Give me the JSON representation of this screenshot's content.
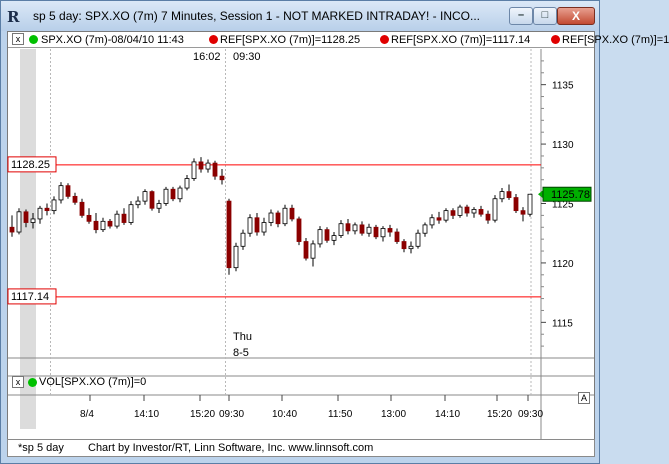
{
  "window": {
    "title": "sp 5 day: SPX.XO (7m) 7 Minutes, Session 1 - NOT MARKED INTRADAY! - INCO...",
    "min_glyph": "–",
    "max_glyph": "□",
    "close_glyph": "X",
    "app_icon_glyph": "R"
  },
  "header": {
    "close_glyph": "x",
    "symbol_label": "SPX.XO (7m)-08/04/10 11:43",
    "ref1_label": "REF[SPX.XO (7m)]=1128.25",
    "ref2_label": "REF[SPX.XO (7m)]=1117.14",
    "ref3_label": "REF[SPX.XO (7m)]=1",
    "symbol_dot_color": "#00c000",
    "ref_dot_color": "#e00000"
  },
  "price_pane": {
    "session_marks": [
      "16:02",
      "09:30"
    ],
    "ref_lines": [
      {
        "label": "1128.25",
        "value": 1128.25,
        "color": "#ff0000"
      },
      {
        "label": "1117.14",
        "value": 1117.14,
        "color": "#ff0000"
      }
    ],
    "last_price_label": "1125.78",
    "last_price_value": 1125.78,
    "day_label": [
      "Thu",
      "8-5"
    ],
    "y_ticks": [
      "1135",
      "1130",
      "1125",
      "1120",
      "1115"
    ],
    "top_ctl": "x"
  },
  "volume_pane": {
    "close_glyph": "x",
    "label": "VOL[SPX.XO (7m)]=0",
    "dot_color": "#00c000",
    "axis_glyph": "A"
  },
  "time_axis": {
    "ticks": [
      "8/4",
      "14:10",
      "15:20",
      "09:30",
      "10:40",
      "11:50",
      "13:00",
      "14:10",
      "15:20",
      "09:30"
    ]
  },
  "footer": {
    "tab_label": "*sp 5 day",
    "credit": "Chart by Investor/RT, Linn Software, Inc. www.linnsoft.com"
  },
  "chart_data": {
    "type": "candlestick",
    "title": "SPX.XO (7m) 7 Minutes",
    "ylim": [
      1112,
      1138
    ],
    "y_ticks": [
      1135,
      1130,
      1125,
      1120,
      1115
    ],
    "x_ticks": [
      "8/4",
      "14:10",
      "15:20",
      "09:30",
      "10:40",
      "11:50",
      "13:00",
      "14:10",
      "15:20",
      "09:30"
    ],
    "series": [
      {
        "name": "SPX.XO (7m)",
        "candles": [
          [
            1123.0,
            1124.0,
            1122.2,
            1122.6
          ],
          [
            1122.6,
            1124.6,
            1122.4,
            1124.3
          ],
          [
            1124.3,
            1124.5,
            1123.0,
            1123.4
          ],
          [
            1123.4,
            1124.2,
            1122.9,
            1123.7
          ],
          [
            1123.7,
            1124.8,
            1123.3,
            1124.6
          ],
          [
            1124.6,
            1125.0,
            1124.0,
            1124.4
          ],
          [
            1124.4,
            1125.6,
            1124.1,
            1125.3
          ],
          [
            1125.3,
            1126.8,
            1125.0,
            1126.5
          ],
          [
            1126.5,
            1126.7,
            1125.4,
            1125.6
          ],
          [
            1125.6,
            1125.9,
            1124.9,
            1125.1
          ],
          [
            1125.1,
            1125.4,
            1123.8,
            1124.0
          ],
          [
            1124.0,
            1124.6,
            1123.3,
            1123.5
          ],
          [
            1123.5,
            1124.2,
            1122.5,
            1122.8
          ],
          [
            1122.8,
            1123.8,
            1122.6,
            1123.5
          ],
          [
            1123.5,
            1123.7,
            1122.9,
            1123.1
          ],
          [
            1123.1,
            1124.4,
            1122.9,
            1124.1
          ],
          [
            1124.1,
            1124.6,
            1123.2,
            1123.4
          ],
          [
            1123.4,
            1125.2,
            1123.2,
            1124.9
          ],
          [
            1124.9,
            1125.6,
            1124.6,
            1125.2
          ],
          [
            1125.2,
            1126.2,
            1124.9,
            1126.0
          ],
          [
            1126.0,
            1126.1,
            1124.4,
            1124.6
          ],
          [
            1124.6,
            1125.3,
            1124.2,
            1125.0
          ],
          [
            1125.0,
            1126.4,
            1124.8,
            1126.2
          ],
          [
            1126.2,
            1126.4,
            1125.2,
            1125.4
          ],
          [
            1125.4,
            1126.5,
            1125.1,
            1126.3
          ],
          [
            1126.3,
            1127.4,
            1126.1,
            1127.1
          ],
          [
            1127.1,
            1128.8,
            1126.9,
            1128.5
          ],
          [
            1128.5,
            1128.9,
            1127.6,
            1127.9
          ],
          [
            1127.9,
            1128.7,
            1127.6,
            1128.4
          ],
          [
            1128.4,
            1128.6,
            1127.0,
            1127.3
          ],
          [
            1127.3,
            1127.9,
            1126.6,
            1127.0
          ],
          [
            1125.2,
            1125.4,
            1119.0,
            1119.6
          ],
          [
            1119.6,
            1121.7,
            1119.3,
            1121.4
          ],
          [
            1121.4,
            1122.8,
            1121.1,
            1122.5
          ],
          [
            1122.5,
            1124.1,
            1122.2,
            1123.8
          ],
          [
            1123.8,
            1124.2,
            1122.3,
            1122.6
          ],
          [
            1122.6,
            1123.8,
            1122.3,
            1123.4
          ],
          [
            1123.4,
            1124.5,
            1123.1,
            1124.2
          ],
          [
            1124.2,
            1124.4,
            1123.0,
            1123.3
          ],
          [
            1123.3,
            1124.9,
            1123.1,
            1124.6
          ],
          [
            1124.6,
            1124.9,
            1123.5,
            1123.7
          ],
          [
            1123.7,
            1123.9,
            1121.5,
            1121.8
          ],
          [
            1121.8,
            1122.1,
            1120.2,
            1120.4
          ],
          [
            1120.4,
            1121.9,
            1119.7,
            1121.6
          ],
          [
            1121.6,
            1123.1,
            1121.3,
            1122.8
          ],
          [
            1122.8,
            1123.0,
            1121.7,
            1121.9
          ],
          [
            1121.9,
            1122.6,
            1121.5,
            1122.3
          ],
          [
            1122.3,
            1123.6,
            1122.1,
            1123.3
          ],
          [
            1123.3,
            1123.7,
            1122.4,
            1122.7
          ],
          [
            1122.7,
            1123.4,
            1122.4,
            1123.2
          ],
          [
            1123.2,
            1123.5,
            1122.3,
            1122.5
          ],
          [
            1122.5,
            1123.3,
            1122.2,
            1123.0
          ],
          [
            1123.0,
            1123.2,
            1122.0,
            1122.2
          ],
          [
            1122.2,
            1123.1,
            1121.8,
            1122.9
          ],
          [
            1122.9,
            1123.2,
            1122.2,
            1122.6
          ],
          [
            1122.6,
            1122.9,
            1121.6,
            1121.8
          ],
          [
            1121.8,
            1122.0,
            1120.9,
            1121.2
          ],
          [
            1121.2,
            1121.8,
            1120.8,
            1121.4
          ],
          [
            1121.4,
            1122.8,
            1121.2,
            1122.5
          ],
          [
            1122.5,
            1123.4,
            1122.2,
            1123.2
          ],
          [
            1123.2,
            1124.1,
            1122.9,
            1123.8
          ],
          [
            1123.8,
            1124.3,
            1123.3,
            1123.6
          ],
          [
            1123.6,
            1124.6,
            1123.4,
            1124.4
          ],
          [
            1124.4,
            1124.6,
            1123.7,
            1124.0
          ],
          [
            1124.0,
            1124.9,
            1123.8,
            1124.7
          ],
          [
            1124.7,
            1124.9,
            1123.9,
            1124.2
          ],
          [
            1124.2,
            1124.7,
            1123.8,
            1124.5
          ],
          [
            1124.5,
            1124.8,
            1123.9,
            1124.1
          ],
          [
            1124.1,
            1124.4,
            1123.3,
            1123.6
          ],
          [
            1123.6,
            1125.7,
            1123.4,
            1125.4
          ],
          [
            1125.4,
            1126.3,
            1125.1,
            1126.0
          ],
          [
            1126.0,
            1126.6,
            1125.3,
            1125.5
          ],
          [
            1125.5,
            1125.8,
            1124.2,
            1124.4
          ],
          [
            1124.4,
            1124.7,
            1123.5,
            1124.1
          ],
          [
            1124.1,
            1125.8,
            1123.9,
            1125.78
          ]
        ]
      }
    ]
  }
}
